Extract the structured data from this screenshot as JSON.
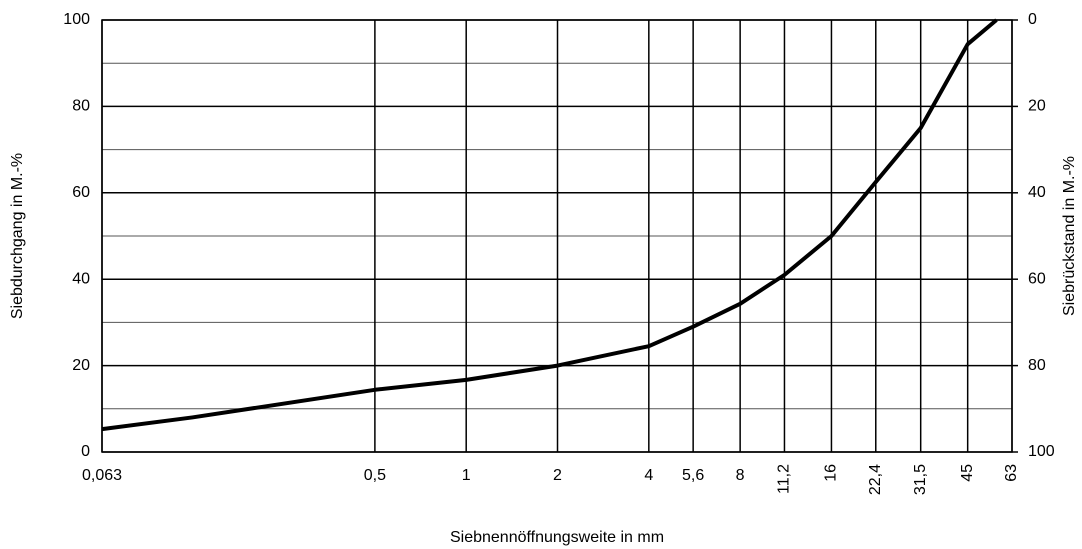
{
  "chart_data": {
    "type": "line",
    "xlabel": "Siebnennöffnungsweite in mm",
    "ylabel": "Siebdurchgang in M.-%",
    "y2label": "Siebrückstand in M.-%",
    "xscale": "log",
    "xlim": [
      0.063,
      63
    ],
    "xticks": [
      {
        "value": 0.063,
        "label": "0,063"
      },
      {
        "value": 0.5,
        "label": "0,5"
      },
      1,
      2,
      4,
      {
        "value": 5.6,
        "label": "5,6"
      },
      8,
      {
        "value": 11.2,
        "label": "11,2"
      },
      16,
      {
        "value": 22.4,
        "label": "22,4"
      },
      {
        "value": 31.5,
        "label": "31,5"
      },
      45,
      63
    ],
    "ylim": [
      0,
      100
    ],
    "yticks": [
      0,
      20,
      40,
      60,
      80,
      100
    ],
    "y2lim": [
      100,
      0
    ],
    "y2ticks": [
      0,
      20,
      40,
      60,
      80,
      100
    ],
    "grid": true,
    "color": "#000000",
    "x": [
      0.063,
      0.125,
      0.5,
      1,
      2,
      4,
      5.6,
      8,
      11.2,
      16,
      22.4,
      31.5,
      45,
      56
    ],
    "values": [
      5.3,
      8,
      14.4,
      16.7,
      20,
      24.5,
      29,
      34.3,
      41,
      50,
      62.5,
      75,
      94.4,
      100
    ]
  }
}
